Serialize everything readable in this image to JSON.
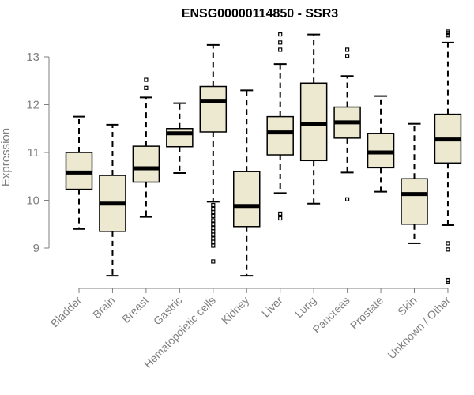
{
  "chart_data": {
    "type": "boxplot",
    "title": "ENSG00000114850 - SSR3",
    "xlabel": "",
    "ylabel": "Expression",
    "ylim": [
      8.1,
      13.7
    ],
    "yticks": [
      9,
      10,
      11,
      12,
      13
    ],
    "grid": false,
    "categories": [
      "Bladder",
      "Brain",
      "Breast",
      "Gastric",
      "Hematopoietic cells",
      "Kidney",
      "Liver",
      "Lung",
      "Pancreas",
      "Prostate",
      "Skin",
      "Unknown / Other"
    ],
    "boxes": [
      {
        "label": "Bladder",
        "whisker_low": 9.4,
        "q1": 10.23,
        "median": 10.58,
        "q3": 11.0,
        "whisker_high": 11.75,
        "outliers": []
      },
      {
        "label": "Brain",
        "whisker_low": 8.42,
        "q1": 9.35,
        "median": 9.93,
        "q3": 10.52,
        "whisker_high": 11.58,
        "outliers": []
      },
      {
        "label": "Breast",
        "whisker_low": 9.65,
        "q1": 10.38,
        "median": 10.67,
        "q3": 11.13,
        "whisker_high": 12.15,
        "outliers": [
          12.35,
          12.52
        ]
      },
      {
        "label": "Gastric",
        "whisker_low": 10.57,
        "q1": 11.12,
        "median": 11.4,
        "q3": 11.5,
        "whisker_high": 12.03,
        "outliers": []
      },
      {
        "label": "Hematopoietic cells",
        "whisker_low": 9.97,
        "q1": 11.43,
        "median": 12.08,
        "q3": 12.38,
        "whisker_high": 13.25,
        "outliers": [
          9.9,
          9.82,
          9.75,
          9.67,
          9.58,
          9.5,
          9.42,
          9.35,
          9.28,
          9.2,
          9.13,
          9.05,
          8.72
        ]
      },
      {
        "label": "Kidney",
        "whisker_low": 8.42,
        "q1": 9.45,
        "median": 9.88,
        "q3": 10.6,
        "whisker_high": 12.3,
        "outliers": []
      },
      {
        "label": "Liver",
        "whisker_low": 10.15,
        "q1": 10.95,
        "median": 11.42,
        "q3": 11.75,
        "whisker_high": 12.85,
        "outliers": [
          9.62,
          9.72,
          13.15,
          13.3,
          13.47
        ]
      },
      {
        "label": "Lung",
        "whisker_low": 9.93,
        "q1": 10.83,
        "median": 11.6,
        "q3": 12.45,
        "whisker_high": 13.47,
        "outliers": []
      },
      {
        "label": "Pancreas",
        "whisker_low": 10.58,
        "q1": 11.3,
        "median": 11.63,
        "q3": 11.95,
        "whisker_high": 12.6,
        "outliers": [
          10.02,
          13.02,
          13.15
        ]
      },
      {
        "label": "Prostate",
        "whisker_low": 10.18,
        "q1": 10.68,
        "median": 11.0,
        "q3": 11.4,
        "whisker_high": 12.18,
        "outliers": []
      },
      {
        "label": "Skin",
        "whisker_low": 9.1,
        "q1": 9.5,
        "median": 10.13,
        "q3": 10.45,
        "whisker_high": 11.6,
        "outliers": []
      },
      {
        "label": "Unknown / Other",
        "whisker_low": 9.48,
        "q1": 10.78,
        "median": 11.27,
        "q3": 11.8,
        "whisker_high": 13.3,
        "outliers": [
          9.1,
          8.97,
          8.33,
          8.3,
          13.45,
          13.5,
          13.53
        ]
      }
    ],
    "colors": {
      "box_fill": "#ede8d0",
      "box_stroke": "#000000",
      "axis": "#7f7f7f",
      "text": "#7f7f7f"
    }
  }
}
